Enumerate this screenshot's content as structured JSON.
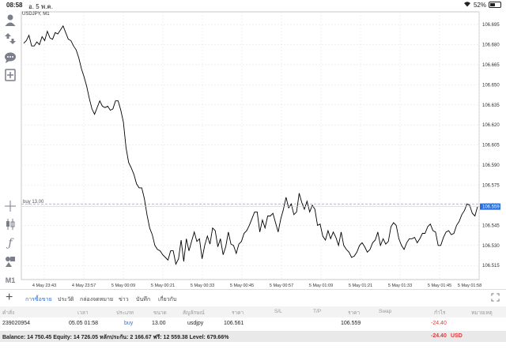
{
  "status_bar": {
    "time": "08:58",
    "date": "อ. 5 พ.ค.",
    "battery": "52%",
    "battery_level": 0.52
  },
  "chart": {
    "symbol_label": "USDJPY, M1",
    "order_label": "buy 13.00",
    "current_price_label": "106.559",
    "colors": {
      "line": "#000000",
      "order_line": "#9aa4b2",
      "price_label_bg": "#2a6fdb",
      "grid": "#e6e6e6"
    }
  },
  "chart_data": {
    "type": "line",
    "ylim": [
      106.5045,
      106.7045
    ],
    "y_ticks": [
      "106.695",
      "106.680",
      "106.665",
      "106.650",
      "106.635",
      "106.620",
      "106.605",
      "106.590",
      "106.575",
      "106.560",
      "106.545",
      "106.530",
      "106.515"
    ],
    "x_ticks": [
      "4 May 23:43",
      "4 May 23:57",
      "5 May 00:09",
      "5 May 00:21",
      "5 May 00:33",
      "5 May 00:45",
      "5 May 00:57",
      "5 May 01:09",
      "5 May 01:21",
      "5 May 01:33",
      "5 May 01:45",
      "5 May 01:58"
    ],
    "order_level": 106.561,
    "series": [
      {
        "values": [
          106.681,
          106.683,
          106.687,
          106.679,
          106.679,
          106.682,
          106.68,
          106.686,
          106.683,
          106.69,
          106.685,
          106.684,
          106.689,
          106.688,
          106.691,
          106.694,
          106.689,
          106.684,
          106.683,
          106.679,
          106.676,
          106.67,
          106.662,
          106.656,
          106.649,
          106.64,
          106.632,
          106.628,
          106.633,
          106.638,
          106.634,
          106.633,
          106.634,
          106.631,
          106.632,
          106.638,
          106.638,
          106.631,
          106.622,
          106.603,
          106.592,
          106.588,
          106.583,
          106.576,
          106.573,
          106.573,
          106.565,
          106.553,
          106.543,
          106.538,
          106.53,
          106.527,
          106.526,
          106.523,
          106.521,
          106.519,
          106.526,
          106.526,
          106.516,
          106.52,
          106.534,
          106.518,
          106.535,
          106.526,
          106.533,
          106.54,
          106.533,
          106.535,
          106.52,
          106.53,
          106.537,
          106.531,
          106.543,
          106.541,
          106.529,
          106.535,
          106.523,
          106.529,
          106.54,
          106.531,
          106.53,
          106.524,
          106.531,
          106.533,
          106.539,
          106.541,
          106.545,
          106.55,
          106.555,
          106.555,
          106.54,
          106.549,
          106.543,
          106.552,
          106.552,
          106.554,
          106.547,
          106.54,
          106.55,
          106.557,
          106.566,
          106.558,
          106.561,
          106.553,
          106.555,
          106.569,
          106.562,
          106.557,
          106.563,
          106.555,
          106.56,
          106.557,
          106.545,
          106.546,
          106.537,
          106.534,
          106.541,
          106.535,
          106.54,
          106.536,
          106.53,
          106.54,
          106.53,
          106.527,
          106.525,
          106.521,
          106.522,
          106.525,
          106.53,
          106.532,
          106.529,
          106.525,
          106.527,
          106.532,
          106.534,
          106.54,
          106.53,
          106.535,
          106.531,
          106.533,
          106.544,
          106.547,
          106.545,
          106.535,
          106.53,
          106.527,
          106.532,
          106.535,
          106.535,
          106.536,
          106.532,
          106.535,
          106.539,
          106.539,
          106.544,
          106.546,
          106.541,
          106.54,
          106.53,
          106.53,
          106.536,
          106.54,
          106.541,
          106.538,
          106.539,
          106.545,
          106.548,
          106.553,
          106.556,
          106.561,
          106.56,
          106.554,
          106.552,
          106.559
        ]
      }
    ]
  },
  "tabs": [
    "การซื้อขาย",
    "ประวัติ",
    "กล่องจดหมาย",
    "ข่าว",
    "บันทึก",
    "เกี่ยวกับ"
  ],
  "table": {
    "headers": [
      "คำสั่ง",
      "เวลา",
      "ประเภท",
      "ขนาด",
      "สัญลักษณ์",
      "ราคา",
      "S/L",
      "T/P",
      "ราคา",
      "Swap",
      "กำไร",
      "หมายเหตุ"
    ],
    "row": {
      "order": "239020954",
      "time": "05.05 01:58",
      "type": "buy",
      "size": "13.00",
      "symbol": "usdjpy",
      "open_price": "106.561",
      "sl": "",
      "tp": "",
      "price": "106.559",
      "swap": "",
      "profit": "-24.40",
      "comment": ""
    }
  },
  "footer": {
    "summary": "Balance: 14 750.45 Equity: 14 726.05 หลักประกัน: 2 166.67 ฟรี: 12 559.38 Level: 679.66%",
    "profit": "-24.40",
    "currency": "USD"
  }
}
